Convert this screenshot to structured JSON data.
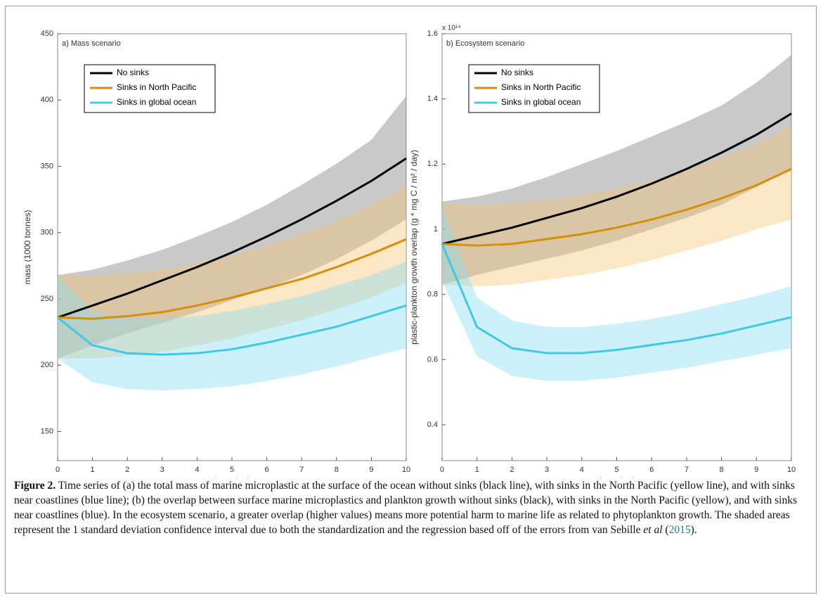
{
  "chart_data": [
    {
      "type": "line",
      "panel": "a) Mass scenario",
      "xlabel": "years since deployment",
      "ylabel": "mass (1000 tonnes)",
      "xlim": [
        0,
        10
      ],
      "xticks": [
        0,
        1,
        2,
        3,
        4,
        5,
        6,
        7,
        8,
        9,
        10
      ],
      "ylim": [
        128,
        450
      ],
      "yticks": [
        150,
        200,
        250,
        300,
        350,
        400,
        450
      ],
      "legend": "upper left",
      "x": [
        0,
        1,
        2,
        3,
        4,
        5,
        6,
        7,
        8,
        9,
        10
      ],
      "series": [
        {
          "name": "No sinks",
          "color": "#000000",
          "band_color": "rgba(120,120,120,0.4)",
          "values": [
            236,
            245,
            254,
            264,
            274,
            285,
            297,
            310,
            324,
            339,
            356
          ],
          "upper": [
            268,
            272,
            279,
            287,
            297,
            308,
            321,
            336,
            352,
            370,
            403
          ],
          "lower": [
            205,
            215,
            224,
            232,
            240,
            249,
            258,
            268,
            280,
            294,
            310
          ]
        },
        {
          "name": "Sinks in North Pacific",
          "color": "#d4900a",
          "band_color": "rgba(245,195,110,0.4)",
          "values": [
            236,
            235,
            237,
            240,
            245,
            251,
            258,
            265,
            274,
            284,
            295
          ],
          "upper": [
            268,
            267,
            269,
            272,
            277,
            283,
            290,
            299,
            309,
            321,
            335
          ],
          "lower": [
            205,
            205,
            207,
            210,
            215,
            220,
            227,
            234,
            242,
            251,
            262
          ]
        },
        {
          "name": "Sinks in global ocean",
          "color": "#3fc8e8",
          "band_color": "rgba(130,220,245,0.4)",
          "values": [
            236,
            215,
            209,
            208,
            209,
            212,
            217,
            223,
            229,
            237,
            245
          ],
          "upper": [
            267,
            240,
            236,
            235,
            237,
            241,
            246,
            252,
            260,
            268,
            278
          ],
          "lower": [
            205,
            187,
            182,
            181,
            182,
            184,
            188,
            193,
            199,
            206,
            213
          ]
        }
      ]
    },
    {
      "type": "line",
      "panel": "b) Ecosystem scenario",
      "xlabel": "years since deployment",
      "ylabel": "plastic-plankton growth overlap (g * mg C / m² / day)",
      "multiplier": "x 10¹⁴",
      "xlim": [
        0,
        10
      ],
      "xticks": [
        0,
        1,
        2,
        3,
        4,
        5,
        6,
        7,
        8,
        9,
        10
      ],
      "ylim": [
        0.29,
        1.6
      ],
      "yticks": [
        0.4,
        0.6,
        0.8,
        1,
        1.2,
        1.4,
        1.6
      ],
      "legend": "upper left",
      "x": [
        0,
        1,
        2,
        3,
        4,
        5,
        6,
        7,
        8,
        9,
        10
      ],
      "series": [
        {
          "name": "No sinks",
          "color": "#000000",
          "band_color": "rgba(120,120,120,0.4)",
          "values": [
            0.955,
            0.98,
            1.005,
            1.035,
            1.065,
            1.1,
            1.14,
            1.185,
            1.235,
            1.29,
            1.355
          ],
          "upper": [
            1.085,
            1.1,
            1.125,
            1.16,
            1.2,
            1.24,
            1.285,
            1.33,
            1.38,
            1.45,
            1.535
          ],
          "lower": [
            0.83,
            0.86,
            0.885,
            0.91,
            0.935,
            0.965,
            1.0,
            1.035,
            1.075,
            1.13,
            1.185
          ]
        },
        {
          "name": "Sinks in North Pacific",
          "color": "#d4900a",
          "band_color": "rgba(245,195,110,0.4)",
          "values": [
            0.955,
            0.95,
            0.955,
            0.97,
            0.985,
            1.005,
            1.03,
            1.06,
            1.095,
            1.135,
            1.185
          ],
          "upper": [
            1.08,
            1.075,
            1.08,
            1.09,
            1.105,
            1.125,
            1.15,
            1.18,
            1.22,
            1.26,
            1.32
          ],
          "lower": [
            0.83,
            0.825,
            0.83,
            0.845,
            0.86,
            0.88,
            0.905,
            0.935,
            0.965,
            1.0,
            1.03
          ]
        },
        {
          "name": "Sinks in global ocean",
          "color": "#3fc8e8",
          "band_color": "rgba(130,220,245,0.4)",
          "values": [
            0.955,
            0.7,
            0.635,
            0.62,
            0.62,
            0.63,
            0.645,
            0.66,
            0.68,
            0.705,
            0.73
          ],
          "upper": [
            1.07,
            0.79,
            0.72,
            0.7,
            0.7,
            0.71,
            0.725,
            0.745,
            0.77,
            0.795,
            0.825
          ],
          "lower": [
            0.84,
            0.61,
            0.55,
            0.535,
            0.535,
            0.545,
            0.56,
            0.575,
            0.595,
            0.615,
            0.635
          ]
        }
      ]
    }
  ],
  "caption": {
    "label": "Figure 2.",
    "text": " Time series of (a) the total mass of marine microplastic at the surface of the ocean without sinks (black line), with sinks in the North Pacific (yellow line), and with sinks near coastlines (blue line); (b) the overlap between surface marine microplastics and plankton growth without sinks (black), with sinks in the North Pacific (yellow), and with sinks near coastlines (blue). In the ecosystem scenario, a greater overlap (higher values) means more potential harm to marine life as related to phytoplankton growth. The shaded areas represent the 1 standard deviation confidence interval due to both the standardization and the regression based off of the errors from van Sebille ",
    "emph": "et al",
    "cite_open": " (",
    "cite": "2015",
    "cite_close": ")."
  }
}
